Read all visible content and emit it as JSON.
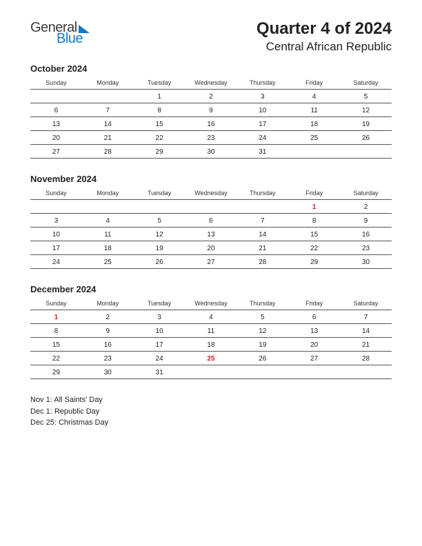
{
  "logo": {
    "text1": "General",
    "text2": "Blue",
    "accent_color": "#1576c4"
  },
  "header": {
    "title": "Quarter 4 of 2024",
    "subtitle": "Central African Republic"
  },
  "day_headers": [
    "Sunday",
    "Monday",
    "Tuesday",
    "Wednesday",
    "Thursday",
    "Friday",
    "Saturday"
  ],
  "months": [
    {
      "name": "October 2024",
      "weeks": [
        [
          "",
          "",
          "1",
          "2",
          "3",
          "4",
          "5"
        ],
        [
          "6",
          "7",
          "8",
          "9",
          "10",
          "11",
          "12"
        ],
        [
          "13",
          "14",
          "15",
          "16",
          "17",
          "18",
          "19"
        ],
        [
          "20",
          "21",
          "22",
          "23",
          "24",
          "25",
          "26"
        ],
        [
          "27",
          "28",
          "29",
          "30",
          "31",
          "",
          ""
        ]
      ],
      "holidays": []
    },
    {
      "name": "November 2024",
      "weeks": [
        [
          "",
          "",
          "",
          "",
          "",
          "1",
          "2"
        ],
        [
          "3",
          "4",
          "5",
          "6",
          "7",
          "8",
          "9"
        ],
        [
          "10",
          "11",
          "12",
          "13",
          "14",
          "15",
          "16"
        ],
        [
          "17",
          "18",
          "19",
          "20",
          "21",
          "22",
          "23"
        ],
        [
          "24",
          "25",
          "26",
          "27",
          "28",
          "29",
          "30"
        ]
      ],
      "holidays": [
        "1"
      ]
    },
    {
      "name": "December 2024",
      "weeks": [
        [
          "1",
          "2",
          "3",
          "4",
          "5",
          "6",
          "7"
        ],
        [
          "8",
          "9",
          "10",
          "11",
          "12",
          "13",
          "14"
        ],
        [
          "15",
          "16",
          "17",
          "18",
          "19",
          "20",
          "21"
        ],
        [
          "22",
          "23",
          "24",
          "25",
          "26",
          "27",
          "28"
        ],
        [
          "29",
          "30",
          "31",
          "",
          "",
          "",
          ""
        ]
      ],
      "holidays": [
        "1",
        "25"
      ]
    }
  ],
  "holiday_list": [
    "Nov 1: All Saints' Day",
    "Dec 1: Republic Day",
    "Dec 25: Christmas Day"
  ],
  "style": {
    "background_color": "#ffffff",
    "text_color": "#222222",
    "holiday_color": "#d02020",
    "border_color": "#555555",
    "title_fontsize": 24,
    "subtitle_fontsize": 17,
    "month_title_fontsize": 13,
    "header_fontsize": 9,
    "cell_fontsize": 10,
    "holiday_list_fontsize": 11
  }
}
